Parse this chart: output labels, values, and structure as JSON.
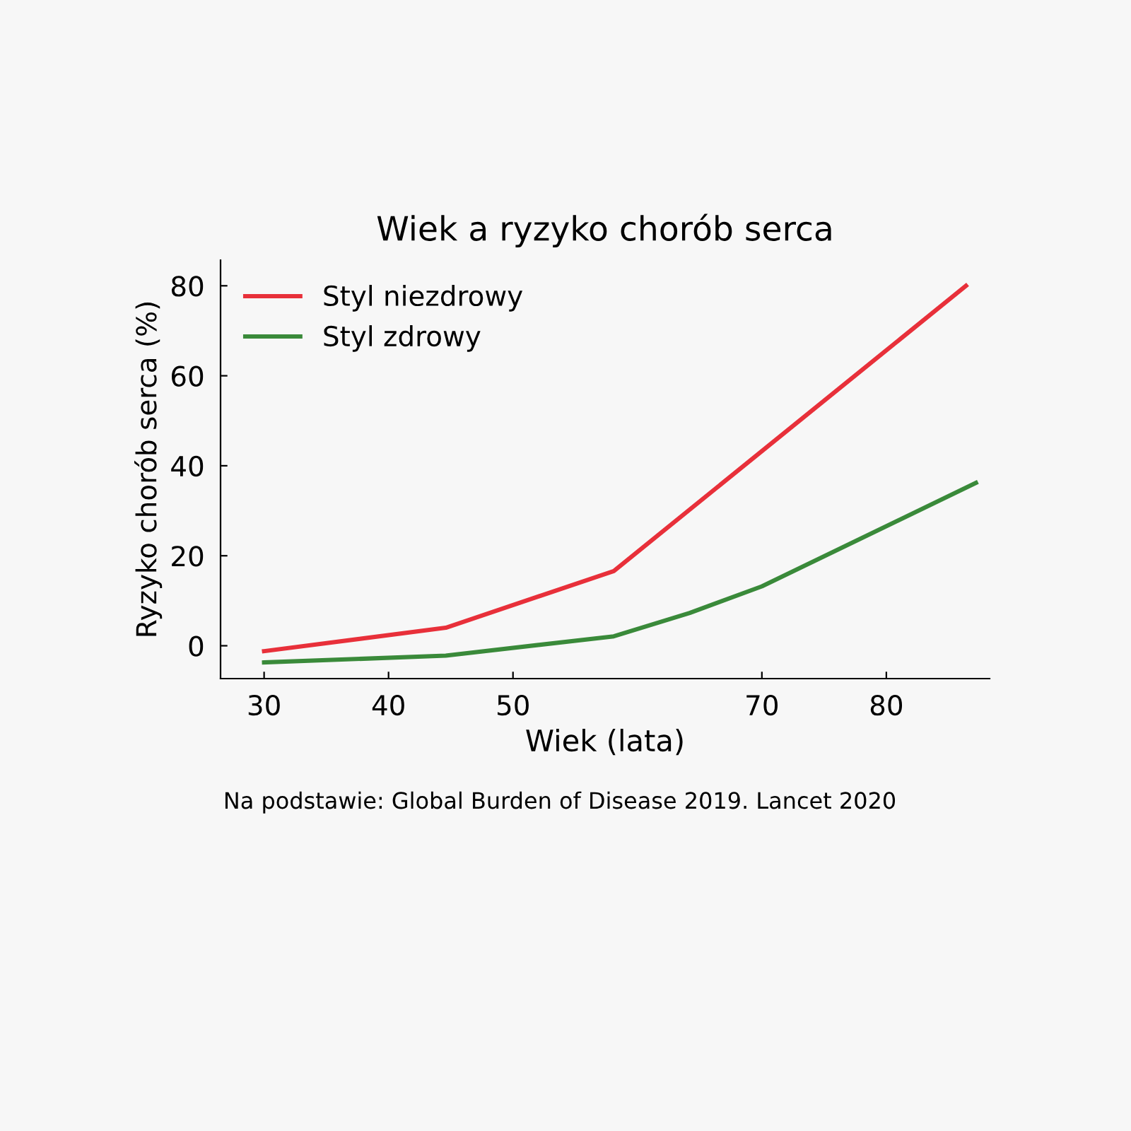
{
  "chart_data": {
    "type": "line",
    "title": "Wiek a ryzyko chorób serca",
    "xlabel": "Wiek (lata)",
    "ylabel": "Ryzyko chorób serca (%)",
    "annotations": [
      "Na podstawie: Global Burden of Disease 2019. Lancet 2020"
    ],
    "series": [
      {
        "name": "Styl niezdrowy",
        "color": "#e8303a",
        "x": [
          30,
          44.6,
          58.1,
          86.4
        ],
        "values": [
          -1.2,
          4.0,
          16.6,
          80
        ]
      },
      {
        "name": "Styl zdrowy",
        "color": "#3a8a3a",
        "x": [
          30,
          44.6,
          58.1,
          64.2,
          70,
          87.2
        ],
        "values": [
          -3.7,
          -2.2,
          2.1,
          7.3,
          13.2,
          36.2
        ]
      }
    ],
    "xlim": [
      26.5,
      88.3
    ],
    "ylim": [
      -7.3,
      85.7
    ],
    "xticks": [
      30,
      40,
      50,
      70,
      80
    ],
    "yticks": [
      0,
      20,
      40,
      60,
      80
    ],
    "grid": false,
    "legend": "top left",
    "marker": "none",
    "line_style": "solid"
  }
}
